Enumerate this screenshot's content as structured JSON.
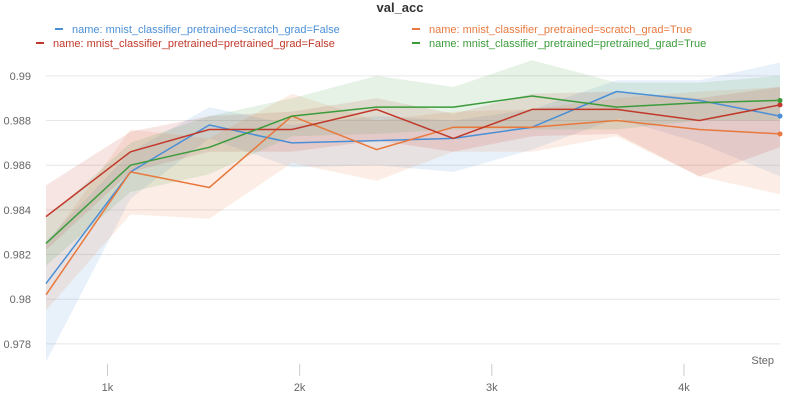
{
  "chart_data": {
    "type": "line",
    "title": "val_acc",
    "xlabel": "Step",
    "ylabel": "",
    "xlim": [
      680,
      4500
    ],
    "ylim": [
      0.9771,
      0.9908
    ],
    "xticks": [
      1000,
      2000,
      3000,
      4000
    ],
    "xtick_labels": [
      "1k",
      "2k",
      "3k",
      "4k"
    ],
    "yticks": [
      0.978,
      0.98,
      0.982,
      0.984,
      0.986,
      0.988,
      0.99
    ],
    "ytick_labels": [
      "0.978",
      "0.98",
      "0.982",
      "0.984",
      "0.986",
      "0.988",
      "0.99"
    ],
    "grid": true,
    "legend_position": "top",
    "series": [
      {
        "name": "name: mnist_classifier_pretrained=scratch_grad=False",
        "color": "#4a8fd6",
        "x": [
          680,
          1120,
          1530,
          1960,
          2400,
          2800,
          3210,
          3650,
          4080,
          4500
        ],
        "y": [
          0.9807,
          0.9857,
          0.9878,
          0.987,
          0.9871,
          0.9872,
          0.9877,
          0.9893,
          0.9889,
          0.9882
        ],
        "upper": [
          0.9826,
          0.9866,
          0.9886,
          0.9878,
          0.9882,
          0.988,
          0.9885,
          0.9898,
          0.9898,
          0.9906
        ],
        "lower": [
          0.9772,
          0.9845,
          0.9872,
          0.9859,
          0.986,
          0.9857,
          0.9867,
          0.9881,
          0.987,
          0.9855
        ]
      },
      {
        "name": "name: mnist_classifier_pretrained=scratch_grad=True",
        "color": "#e8793e",
        "x": [
          680,
          1120,
          1530,
          1960,
          2400,
          2800,
          3210,
          3650,
          4080,
          4500
        ],
        "y": [
          0.9802,
          0.9857,
          0.985,
          0.9882,
          0.9867,
          0.9877,
          0.9877,
          0.988,
          0.9876,
          0.9874
        ],
        "upper": [
          0.9824,
          0.9876,
          0.9872,
          0.9892,
          0.988,
          0.9884,
          0.9885,
          0.989,
          0.9893,
          0.9895
        ],
        "lower": [
          0.9795,
          0.9838,
          0.9836,
          0.9861,
          0.9853,
          0.9866,
          0.9866,
          0.9873,
          0.9855,
          0.9847
        ]
      },
      {
        "name": "name: mnist_classifier_pretrained=pretrained_grad=False",
        "color": "#c0392b",
        "x": [
          680,
          1120,
          1530,
          1960,
          2400,
          2800,
          3210,
          3650,
          4080,
          4500
        ],
        "y": [
          0.9837,
          0.9866,
          0.9876,
          0.9876,
          0.9885,
          0.9872,
          0.9885,
          0.9885,
          0.988,
          0.9887
        ],
        "upper": [
          0.9851,
          0.9875,
          0.9882,
          0.9884,
          0.989,
          0.9883,
          0.9892,
          0.9893,
          0.989,
          0.9895
        ],
        "lower": [
          0.9822,
          0.9857,
          0.9866,
          0.9866,
          0.9871,
          0.9866,
          0.9873,
          0.9874,
          0.9855,
          0.9868
        ]
      },
      {
        "name": "name: mnist_classifier_pretrained=pretrained_grad=True",
        "color": "#3b9b3b",
        "x": [
          680,
          1120,
          1530,
          1960,
          2400,
          2800,
          3210,
          3650,
          4080,
          4500
        ],
        "y": [
          0.9825,
          0.986,
          0.9868,
          0.9882,
          0.9886,
          0.9886,
          0.9891,
          0.9886,
          0.9888,
          0.9889
        ],
        "upper": [
          0.9836,
          0.987,
          0.9882,
          0.989,
          0.99,
          0.9895,
          0.9907,
          0.9897,
          0.9897,
          0.99
        ],
        "lower": [
          0.9815,
          0.9848,
          0.9856,
          0.9873,
          0.9874,
          0.9876,
          0.9876,
          0.9876,
          0.988,
          0.988
        ]
      }
    ]
  }
}
